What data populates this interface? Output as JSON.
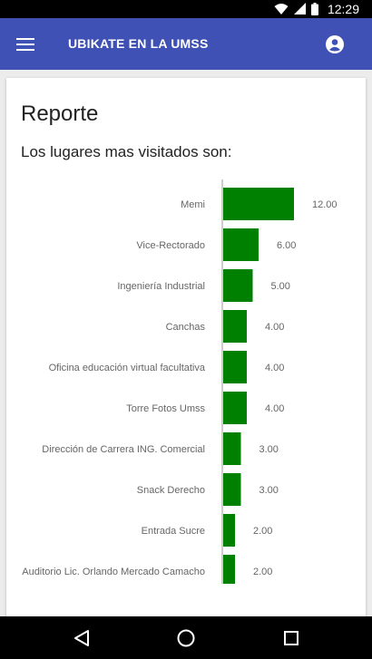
{
  "status_bar": {
    "time": "12:29",
    "icons": [
      "wifi-icon",
      "signal-icon",
      "battery-icon"
    ]
  },
  "app_bar": {
    "title": "UBIKATE EN LA UMSS",
    "color": "#3f51b5",
    "icons": [
      "menu-icon",
      "account-circle-icon"
    ]
  },
  "card": {
    "title": "Reporte",
    "subtitle": "Los lugares mas visitados son:"
  },
  "chart_data": {
    "type": "bar",
    "orientation": "horizontal",
    "bar_color": "#008000",
    "categories": [
      "Memi",
      "Vice-Rectorado",
      "Ingeniería Industrial",
      "Canchas",
      "Oficina educación virtual facultativa",
      "Torre Fotos Umss",
      "Dirección de Carrera ING. Comercial",
      "Snack Derecho",
      "Entrada Sucre",
      "Auditorio Lic. Orlando Mercado Camacho"
    ],
    "values": [
      12,
      6,
      5,
      4,
      4,
      4,
      3,
      3,
      2,
      2
    ],
    "value_labels": [
      "12.00",
      "6.00",
      "5.00",
      "4.00",
      "4.00",
      "4.00",
      "3.00",
      "3.00",
      "2.00",
      "2.00"
    ],
    "xlim": [
      0,
      12
    ]
  },
  "nav_bar": {
    "icons": [
      "back-icon",
      "home-icon",
      "recents-icon"
    ]
  }
}
